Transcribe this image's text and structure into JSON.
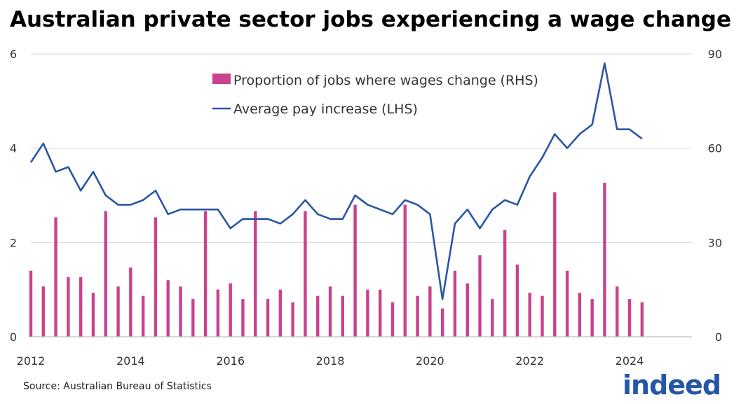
{
  "title": "Australian private sector jobs experiencing a wage change",
  "source": "Source: Australian Bureau of Statistics",
  "logo_text": "indeed",
  "colors": {
    "bars": "#c9428e",
    "line": "#2a56a4",
    "logo": "#2557a7"
  },
  "chart_data": {
    "type": "bar+line",
    "legend": {
      "placement": "top-center",
      "entries": [
        {
          "label": "Proportion of jobs where wages change (RHS)",
          "kind": "bar"
        },
        {
          "label": "Average pay increase (LHS)",
          "kind": "line"
        }
      ]
    },
    "x_ticks": [
      "2012",
      "2014",
      "2016",
      "2018",
      "2020",
      "2022",
      "2024"
    ],
    "xlim": [
      2012,
      2025.25
    ],
    "y_left": {
      "ticks": [
        "0",
        "2",
        "4",
        "6"
      ],
      "range": [
        0,
        6
      ]
    },
    "y_right": {
      "ticks": [
        "0",
        "30",
        "60",
        "90"
      ],
      "range": [
        0,
        90
      ]
    },
    "grid": "horizontal",
    "series": [
      {
        "name": "Proportion of jobs where wages change (RHS)",
        "type": "bar",
        "axis": "right",
        "points": [
          [
            2012.0,
            21
          ],
          [
            2012.25,
            16
          ],
          [
            2012.5,
            38
          ],
          [
            2012.75,
            19
          ],
          [
            2013.0,
            19
          ],
          [
            2013.25,
            14
          ],
          [
            2013.5,
            40
          ],
          [
            2013.75,
            16
          ],
          [
            2014.0,
            22
          ],
          [
            2014.25,
            13
          ],
          [
            2014.5,
            38
          ],
          [
            2014.75,
            18
          ],
          [
            2015.0,
            16
          ],
          [
            2015.25,
            12
          ],
          [
            2015.5,
            40
          ],
          [
            2015.75,
            15
          ],
          [
            2016.0,
            17
          ],
          [
            2016.25,
            12
          ],
          [
            2016.5,
            40
          ],
          [
            2016.75,
            12
          ],
          [
            2017.0,
            15
          ],
          [
            2017.25,
            11
          ],
          [
            2017.5,
            40
          ],
          [
            2017.75,
            13
          ],
          [
            2018.0,
            16
          ],
          [
            2018.25,
            13
          ],
          [
            2018.5,
            42
          ],
          [
            2018.75,
            15
          ],
          [
            2019.0,
            15
          ],
          [
            2019.25,
            11
          ],
          [
            2019.5,
            42
          ],
          [
            2019.75,
            13
          ],
          [
            2020.0,
            16
          ],
          [
            2020.25,
            9
          ],
          [
            2020.5,
            21
          ],
          [
            2020.75,
            17
          ],
          [
            2021.0,
            26
          ],
          [
            2021.25,
            12
          ],
          [
            2021.5,
            34
          ],
          [
            2021.75,
            23
          ],
          [
            2022.0,
            14
          ],
          [
            2022.25,
            13
          ],
          [
            2022.5,
            46
          ],
          [
            2022.75,
            21
          ],
          [
            2023.0,
            14
          ],
          [
            2023.25,
            12
          ],
          [
            2023.5,
            49
          ],
          [
            2023.75,
            16
          ],
          [
            2024.0,
            12
          ],
          [
            2024.25,
            11
          ]
        ]
      },
      {
        "name": "Average pay increase (LHS)",
        "type": "line",
        "axis": "left",
        "points": [
          [
            2012.0,
            3.7
          ],
          [
            2012.25,
            4.1
          ],
          [
            2012.5,
            3.5
          ],
          [
            2012.75,
            3.6
          ],
          [
            2013.0,
            3.1
          ],
          [
            2013.25,
            3.5
          ],
          [
            2013.5,
            3.0
          ],
          [
            2013.75,
            2.8
          ],
          [
            2014.0,
            2.8
          ],
          [
            2014.25,
            2.9
          ],
          [
            2014.5,
            3.1
          ],
          [
            2014.75,
            2.6
          ],
          [
            2015.0,
            2.7
          ],
          [
            2015.25,
            2.7
          ],
          [
            2015.5,
            2.7
          ],
          [
            2015.75,
            2.7
          ],
          [
            2016.0,
            2.3
          ],
          [
            2016.25,
            2.5
          ],
          [
            2016.5,
            2.5
          ],
          [
            2016.75,
            2.5
          ],
          [
            2017.0,
            2.4
          ],
          [
            2017.25,
            2.6
          ],
          [
            2017.5,
            2.9
          ],
          [
            2017.75,
            2.6
          ],
          [
            2018.0,
            2.5
          ],
          [
            2018.25,
            2.5
          ],
          [
            2018.5,
            3.0
          ],
          [
            2018.75,
            2.8
          ],
          [
            2019.0,
            2.7
          ],
          [
            2019.25,
            2.6
          ],
          [
            2019.5,
            2.9
          ],
          [
            2019.75,
            2.8
          ],
          [
            2020.0,
            2.6
          ],
          [
            2020.25,
            0.8
          ],
          [
            2020.5,
            2.4
          ],
          [
            2020.75,
            2.7
          ],
          [
            2021.0,
            2.3
          ],
          [
            2021.25,
            2.7
          ],
          [
            2021.5,
            2.9
          ],
          [
            2021.75,
            2.8
          ],
          [
            2022.0,
            3.4
          ],
          [
            2022.25,
            3.8
          ],
          [
            2022.5,
            4.3
          ],
          [
            2022.75,
            4.0
          ],
          [
            2023.0,
            4.3
          ],
          [
            2023.25,
            4.5
          ],
          [
            2023.5,
            5.8
          ],
          [
            2023.75,
            4.4
          ],
          [
            2024.0,
            4.4
          ],
          [
            2024.25,
            4.2
          ]
        ]
      }
    ]
  }
}
